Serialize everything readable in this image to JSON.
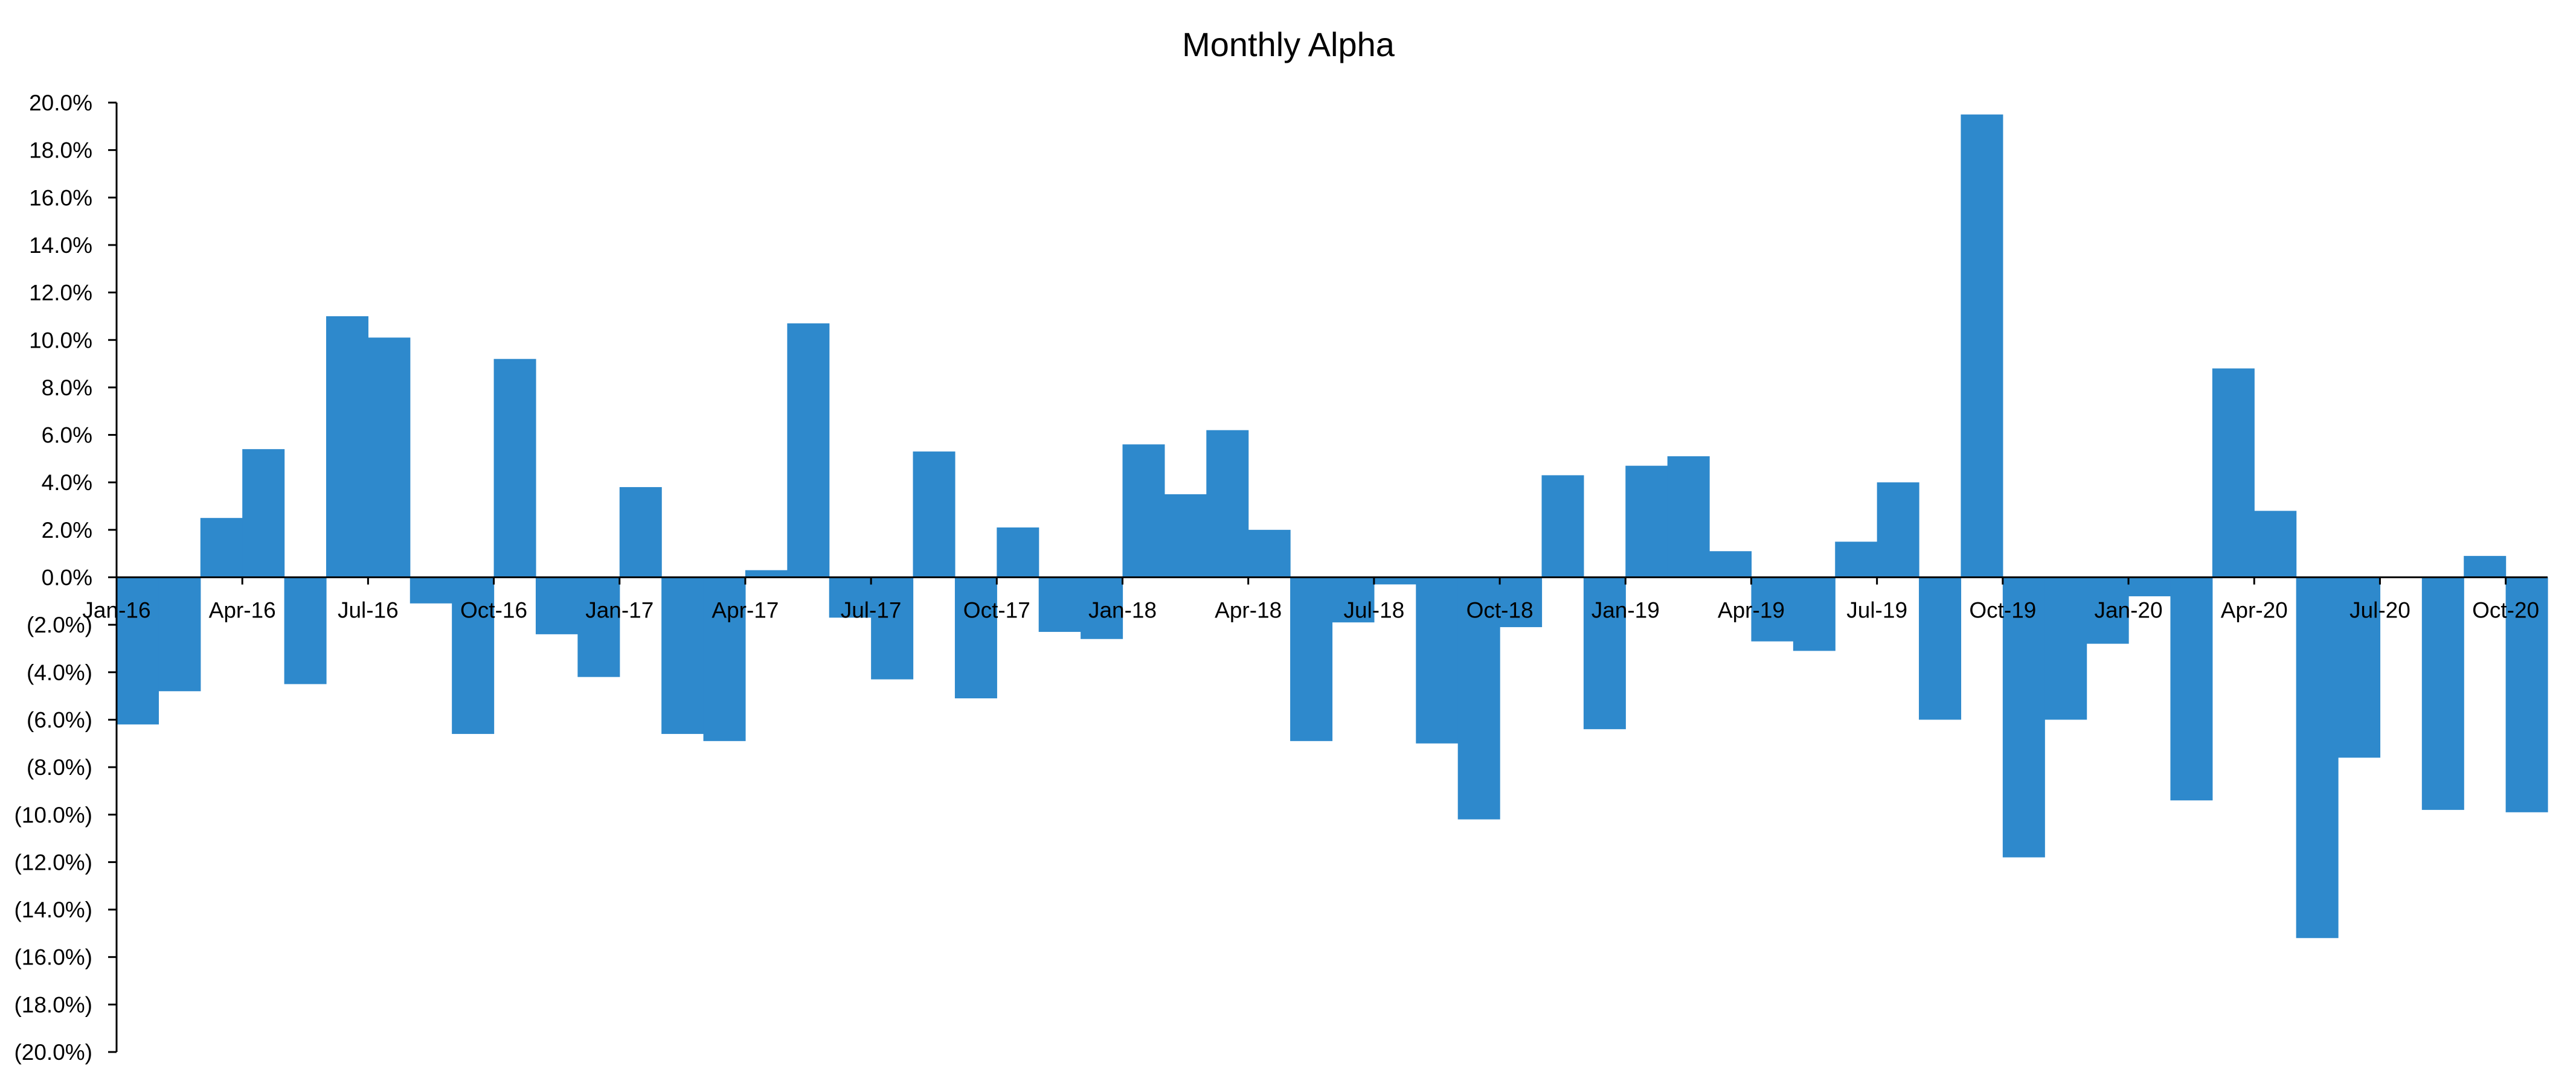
{
  "colors": {
    "bar": "#2e89cc",
    "axis": "#000000",
    "background": "#ffffff"
  },
  "chart_data": {
    "type": "bar",
    "title": "Monthly Alpha",
    "xlabel": "",
    "ylabel": "",
    "grid": false,
    "legend": "none",
    "ylim": [
      -0.2,
      0.2
    ],
    "y_ticks": [
      0.2,
      0.18,
      0.16,
      0.14,
      0.12,
      0.1,
      0.08,
      0.06,
      0.04,
      0.02,
      0.0,
      -0.02,
      -0.04,
      -0.06,
      -0.08,
      -0.1,
      -0.12,
      -0.14,
      -0.16,
      -0.18,
      -0.2
    ],
    "y_tick_labels": [
      "20.0%",
      "18.0%",
      "16.0%",
      "14.0%",
      "12.0%",
      "10.0%",
      "8.0%",
      "6.0%",
      "4.0%",
      "2.0%",
      "0.0%",
      "(2.0%)",
      "(4.0%)",
      "(6.0%)",
      "(8.0%)",
      "(10.0%)",
      "(12.0%)",
      "(14.0%)",
      "(16.0%)",
      "(18.0%)",
      "(20.0%)"
    ],
    "x_tick_labels": [
      "Jan-16",
      "Apr-16",
      "Jul-16",
      "Oct-16",
      "Jan-17",
      "Apr-17",
      "Jul-17",
      "Oct-17",
      "Jan-18",
      "Apr-18",
      "Jul-18",
      "Oct-18",
      "Jan-19",
      "Apr-19",
      "Jul-19",
      "Oct-19",
      "Jan-20",
      "Apr-20",
      "Jul-20",
      "Oct-20"
    ],
    "categories": [
      "Jan-16",
      "Feb-16",
      "Mar-16",
      "Apr-16",
      "May-16",
      "Jun-16",
      "Jul-16",
      "Aug-16",
      "Sep-16",
      "Oct-16",
      "Nov-16",
      "Dec-16",
      "Jan-17",
      "Feb-17",
      "Mar-17",
      "Apr-17",
      "May-17",
      "Jun-17",
      "Jul-17",
      "Aug-17",
      "Sep-17",
      "Oct-17",
      "Nov-17",
      "Dec-17",
      "Jan-18",
      "Feb-18",
      "Mar-18",
      "Apr-18",
      "May-18",
      "Jun-18",
      "Jul-18",
      "Aug-18",
      "Sep-18",
      "Oct-18",
      "Nov-18",
      "Dec-18",
      "Jan-19",
      "Feb-19",
      "Mar-19",
      "Apr-19",
      "May-19",
      "Jun-19",
      "Jul-19",
      "Aug-19",
      "Sep-19",
      "Oct-19",
      "Nov-19",
      "Dec-19",
      "Jan-20",
      "Feb-20",
      "Mar-20",
      "Apr-20",
      "May-20",
      "Jun-20",
      "Jul-20",
      "Aug-20",
      "Sep-20",
      "Oct-20"
    ],
    "values": [
      -0.062,
      -0.048,
      0.025,
      0.054,
      -0.045,
      0.11,
      0.101,
      -0.011,
      -0.066,
      0.092,
      -0.024,
      -0.042,
      0.038,
      -0.066,
      -0.069,
      0.003,
      0.107,
      -0.017,
      -0.043,
      0.053,
      -0.051,
      0.021,
      -0.023,
      -0.026,
      0.056,
      0.035,
      0.062,
      0.02,
      -0.069,
      -0.019,
      -0.003,
      -0.07,
      -0.102,
      -0.021,
      0.043,
      -0.064,
      0.047,
      0.051,
      0.011,
      -0.027,
      -0.031,
      0.015,
      0.04,
      -0.06,
      0.195,
      -0.118,
      -0.06,
      -0.028,
      -0.008,
      -0.094,
      0.088,
      0.028,
      -0.152,
      -0.076,
      0.0,
      -0.098,
      0.009,
      -0.099
    ]
  }
}
